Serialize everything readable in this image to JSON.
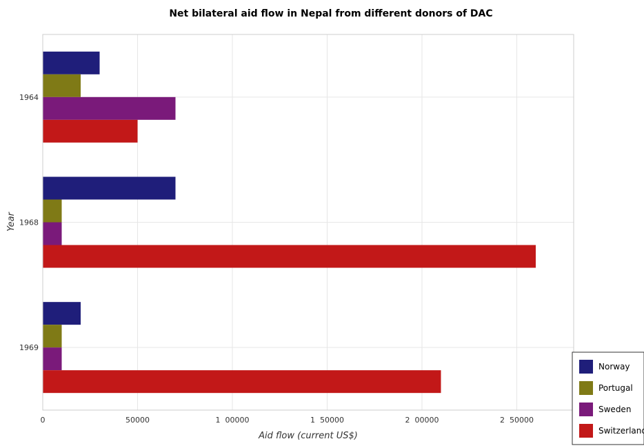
{
  "chart_data": {
    "type": "bar",
    "orientation": "horizontal",
    "title": "Net bilateral aid flow in Nepal from different donors of DAC",
    "xlabel": "Aid flow (current US$)",
    "ylabel": "Year",
    "categories": [
      "1964",
      "1968",
      "1969"
    ],
    "xlim": [
      0,
      280000
    ],
    "xticks": [
      0,
      50000,
      100000,
      150000,
      200000,
      250000
    ],
    "xtick_labels": [
      "0",
      "50000",
      "1  00000",
      "1  50000",
      "2  00000",
      "2  50000"
    ],
    "grid": true,
    "legend_position": "bottom-right",
    "series": [
      {
        "name": "Norway",
        "color": "#1f1e7a",
        "values": [
          30000,
          70000,
          20000
        ]
      },
      {
        "name": "Portugal",
        "color": "#7f7a16",
        "values": [
          20000,
          10000,
          10000
        ]
      },
      {
        "name": "Sweden",
        "color": "#7a1a7a",
        "values": [
          70000,
          10000,
          10000
        ]
      },
      {
        "name": "Switzerland",
        "color": "#c21818",
        "values": [
          50000,
          260000,
          210000
        ]
      }
    ]
  }
}
